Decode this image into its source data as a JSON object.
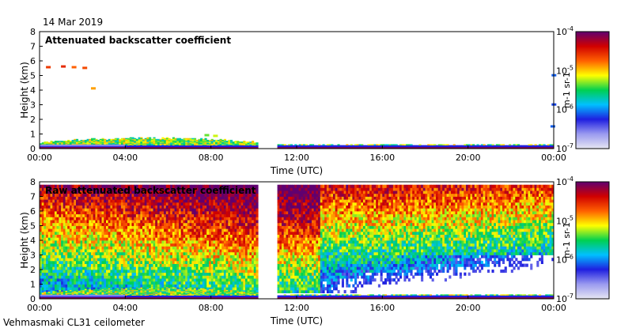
{
  "page": {
    "date": "14 Mar 2019",
    "footer": "Vehmasmaki CL31 ceilometer"
  },
  "colormap": {
    "stops": [
      "#e6e6f2",
      "#9a9af0",
      "#1f1fe0",
      "#00c0ff",
      "#00d050",
      "#ffff00",
      "#ff6000",
      "#d00000",
      "#600070"
    ]
  },
  "chart_data": [
    {
      "type": "heatmap",
      "title": "Attenuated backscatter coefficient",
      "xlabel": "Time (UTC)",
      "ylabel": "Height (km)",
      "xlim": [
        0,
        24
      ],
      "ylim": [
        0,
        8
      ],
      "x_ticks": [
        0,
        4,
        8,
        12,
        16,
        20,
        24
      ],
      "x_tick_labels": [
        "00:00",
        "04:00",
        "08:00",
        "12:00",
        "16:00",
        "20:00",
        "00:00"
      ],
      "y_ticks": [
        0,
        1,
        2,
        3,
        4,
        5,
        6,
        7,
        8
      ],
      "y_tick_labels": [
        "0",
        "1",
        "2",
        "3",
        "4",
        "5",
        "6",
        "7",
        "8"
      ],
      "data_gap_hours": [
        10.1,
        11.05
      ],
      "colorbar": {
        "label": "m-1 sr-1",
        "range": [
          1e-07,
          0.0001
        ],
        "scale": "log",
        "ticks": [
          {
            "base": "10",
            "exp": "-4"
          },
          {
            "base": "10",
            "exp": "-5"
          },
          {
            "base": "10",
            "exp": "-6"
          },
          {
            "base": "10",
            "exp": "-7"
          }
        ]
      }
    },
    {
      "type": "heatmap",
      "title": "Raw attenuated backscatter coefficient",
      "xlabel": "Time (UTC)",
      "ylabel": "Height (km)",
      "xlim": [
        0,
        24
      ],
      "ylim": [
        0,
        8
      ],
      "x_ticks": [
        0,
        4,
        8,
        12,
        16,
        20,
        24
      ],
      "x_tick_labels": [
        "00:00",
        "04:00",
        "08:00",
        "12:00",
        "16:00",
        "20:00",
        "00:00"
      ],
      "y_ticks": [
        0,
        1,
        2,
        3,
        4,
        5,
        6,
        7,
        8
      ],
      "y_tick_labels": [
        "0",
        "1",
        "2",
        "3",
        "4",
        "5",
        "6",
        "7",
        "8"
      ],
      "data_gap_hours": [
        10.1,
        11.05
      ],
      "colorbar": {
        "label": "m-1 sr-1",
        "range": [
          1e-07,
          0.0001
        ],
        "scale": "log",
        "ticks": [
          {
            "base": "10",
            "exp": "-4"
          },
          {
            "base": "10",
            "exp": "-5"
          },
          {
            "base": "10",
            "exp": "-6"
          },
          {
            "base": "10",
            "exp": "-7"
          }
        ]
      }
    }
  ]
}
